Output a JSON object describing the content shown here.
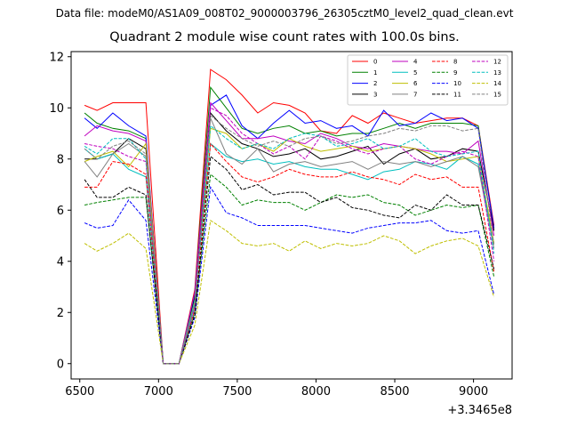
{
  "figure": {
    "file_label": "Data file: modeM0/AS1A09_008T02_9000003796_26305cztM0_level2_quad_clean.evt"
  },
  "chart_data": {
    "type": "line",
    "title": "Quadrant 2 module wise count rates with 100.0s bins.",
    "xlabel": "",
    "ylabel": "",
    "x_offset_label": "+3.3465e8",
    "xlim": [
      6445,
      9245
    ],
    "ylim": [
      -0.6,
      12.2
    ],
    "x_ticks": [
      6500,
      7000,
      7500,
      8000,
      8500,
      9000
    ],
    "x_tick_labels": [
      "6500",
      "7000",
      "7500",
      "8000",
      "8500",
      "9000"
    ],
    "y_ticks": [
      0,
      2,
      4,
      6,
      8,
      10,
      12
    ],
    "y_tick_labels": [
      "0",
      "2",
      "4",
      "6",
      "8",
      "10",
      "12"
    ],
    "grid": false,
    "legend": {
      "position": "top-right",
      "columns": 4
    },
    "x": [
      6530,
      6610,
      6710,
      6810,
      6920,
      7030,
      7130,
      7230,
      7330,
      7430,
      7530,
      7630,
      7730,
      7830,
      7930,
      8030,
      8130,
      8230,
      8330,
      8430,
      8530,
      8630,
      8730,
      8830,
      8930,
      9030,
      9130
    ],
    "series": [
      {
        "name": "0",
        "color": "#ff0000",
        "dash": "solid",
        "values": [
          10.1,
          9.9,
          10.2,
          10.2,
          10.2,
          0,
          0,
          2.9,
          11.5,
          11.1,
          10.5,
          9.8,
          10.2,
          10.1,
          9.8,
          9.1,
          9.0,
          9.7,
          9.4,
          9.8,
          9.6,
          9.4,
          9.5,
          9.6,
          9.6,
          9.3,
          5.4
        ]
      },
      {
        "name": "1",
        "color": "#008000",
        "dash": "solid",
        "values": [
          9.8,
          9.4,
          9.2,
          9.1,
          8.8,
          0,
          0,
          2.8,
          10.8,
          10.0,
          9.2,
          9.0,
          9.2,
          9.3,
          9.0,
          9.1,
          8.9,
          9.0,
          9.0,
          9.2,
          9.4,
          9.2,
          9.4,
          9.4,
          9.4,
          9.3,
          5.2
        ]
      },
      {
        "name": "2",
        "color": "#0000ff",
        "dash": "solid",
        "values": [
          9.6,
          9.2,
          9.8,
          9.3,
          8.9,
          0,
          0,
          2.7,
          10.1,
          10.5,
          9.3,
          8.8,
          9.4,
          9.9,
          9.4,
          9.5,
          9.2,
          9.3,
          8.9,
          9.9,
          9.3,
          9.4,
          9.8,
          9.5,
          9.6,
          9.2,
          5.3
        ]
      },
      {
        "name": "3",
        "color": "#000000",
        "dash": "solid",
        "values": [
          8.0,
          8.0,
          8.2,
          8.8,
          8.4,
          0,
          0,
          2.6,
          9.8,
          9.1,
          8.6,
          8.4,
          8.1,
          8.2,
          8.4,
          8.0,
          8.1,
          8.3,
          8.5,
          7.8,
          8.2,
          8.4,
          8.0,
          8.1,
          8.4,
          8.3,
          5.2
        ]
      },
      {
        "name": "4",
        "color": "#bf00bf",
        "dash": "solid",
        "values": [
          8.9,
          9.3,
          9.1,
          9.0,
          8.7,
          0,
          0,
          2.8,
          10.2,
          9.5,
          8.8,
          8.8,
          8.9,
          8.7,
          8.6,
          9.0,
          8.8,
          8.5,
          8.4,
          8.6,
          8.5,
          8.4,
          8.3,
          8.3,
          8.2,
          8.7,
          5.0
        ]
      },
      {
        "name": "5",
        "color": "#00bfbf",
        "dash": "solid",
        "values": [
          8.4,
          8.0,
          8.2,
          7.6,
          7.3,
          0,
          0,
          2.5,
          8.6,
          8.1,
          7.9,
          8.0,
          7.8,
          7.9,
          7.7,
          7.6,
          7.6,
          7.4,
          7.2,
          7.5,
          7.6,
          7.9,
          7.8,
          7.6,
          8.1,
          7.8,
          4.7
        ]
      },
      {
        "name": "6",
        "color": "#bfbf00",
        "dash": "solid",
        "values": [
          7.9,
          8.1,
          8.3,
          7.7,
          8.6,
          0,
          0,
          2.4,
          9.2,
          9.0,
          8.4,
          8.6,
          8.3,
          8.8,
          8.5,
          8.3,
          8.4,
          8.5,
          8.3,
          8.4,
          8.5,
          8.4,
          8.2,
          7.9,
          8.0,
          8.1,
          4.7
        ]
      },
      {
        "name": "7",
        "color": "#808080",
        "dash": "solid",
        "values": [
          7.9,
          7.3,
          8.2,
          8.6,
          8.1,
          0,
          0,
          2.3,
          9.6,
          8.2,
          7.8,
          8.4,
          7.5,
          7.8,
          7.9,
          7.7,
          7.8,
          7.9,
          7.6,
          7.9,
          7.8,
          7.9,
          7.7,
          7.9,
          8.1,
          7.7,
          4.5
        ]
      },
      {
        "name": "8",
        "color": "#ff0000",
        "dash": "dashed",
        "values": [
          6.9,
          6.9,
          7.9,
          7.8,
          7.4,
          0,
          0,
          2.1,
          8.6,
          7.9,
          7.3,
          7.1,
          7.3,
          7.6,
          7.4,
          7.3,
          7.3,
          7.5,
          7.3,
          7.2,
          7.0,
          7.4,
          7.2,
          7.3,
          6.9,
          6.9,
          3.6
        ]
      },
      {
        "name": "9",
        "color": "#008000",
        "dash": "dashed",
        "values": [
          6.2,
          6.3,
          6.4,
          6.5,
          6.5,
          0,
          0,
          2.0,
          7.4,
          6.9,
          6.2,
          6.4,
          6.3,
          6.3,
          6.0,
          6.3,
          6.6,
          6.5,
          6.6,
          6.3,
          6.2,
          5.8,
          6.0,
          6.2,
          6.1,
          6.2,
          3.4
        ]
      },
      {
        "name": "10",
        "color": "#0000ff",
        "dash": "dashed",
        "values": [
          5.5,
          5.3,
          5.4,
          6.4,
          5.6,
          0,
          0,
          1.8,
          6.9,
          5.9,
          5.7,
          5.4,
          5.4,
          5.4,
          5.4,
          5.3,
          5.2,
          5.1,
          5.3,
          5.4,
          5.5,
          5.5,
          5.6,
          5.2,
          5.1,
          5.2,
          2.7
        ]
      },
      {
        "name": "11",
        "color": "#000000",
        "dash": "dashed",
        "values": [
          7.2,
          6.5,
          6.5,
          6.9,
          6.6,
          0,
          0,
          1.9,
          8.1,
          7.6,
          6.8,
          7.0,
          6.6,
          6.7,
          6.7,
          6.3,
          6.5,
          6.1,
          6.0,
          5.8,
          5.7,
          6.2,
          6.0,
          6.6,
          6.2,
          6.2,
          3.7
        ]
      },
      {
        "name": "12",
        "color": "#bf00bf",
        "dash": "dashed",
        "values": [
          8.6,
          8.5,
          8.4,
          8.1,
          7.9,
          0,
          0,
          2.2,
          10.0,
          9.7,
          9.0,
          8.6,
          8.2,
          8.5,
          8.0,
          8.9,
          8.7,
          8.4,
          8.2,
          8.4,
          8.5,
          8.0,
          7.8,
          8.1,
          8.3,
          8.1,
          4.0
        ]
      },
      {
        "name": "13",
        "color": "#00bfbf",
        "dash": "dashed",
        "values": [
          8.5,
          8.2,
          8.8,
          8.8,
          8.0,
          0,
          0,
          2.3,
          9.3,
          8.8,
          8.4,
          8.6,
          8.4,
          8.8,
          9.0,
          8.9,
          8.5,
          8.6,
          8.8,
          8.4,
          8.5,
          8.8,
          8.3,
          8.1,
          8.2,
          8.3,
          4.3
        ]
      },
      {
        "name": "14",
        "color": "#bfbf00",
        "dash": "dashed",
        "values": [
          4.7,
          4.4,
          4.7,
          5.1,
          4.5,
          0,
          0,
          1.5,
          5.6,
          5.2,
          4.7,
          4.6,
          4.7,
          4.4,
          4.8,
          4.5,
          4.7,
          4.6,
          4.7,
          5.0,
          4.8,
          4.3,
          4.6,
          4.8,
          4.9,
          4.6,
          2.6
        ]
      },
      {
        "name": "15",
        "color": "#808080",
        "dash": "dashed",
        "values": [
          8.4,
          8.0,
          8.5,
          8.7,
          8.2,
          0,
          0,
          2.4,
          9.7,
          9.2,
          8.8,
          8.5,
          8.7,
          8.5,
          8.8,
          8.9,
          8.6,
          8.7,
          8.9,
          9.0,
          9.2,
          9.1,
          9.3,
          9.3,
          9.1,
          9.2,
          4.6
        ]
      }
    ]
  }
}
